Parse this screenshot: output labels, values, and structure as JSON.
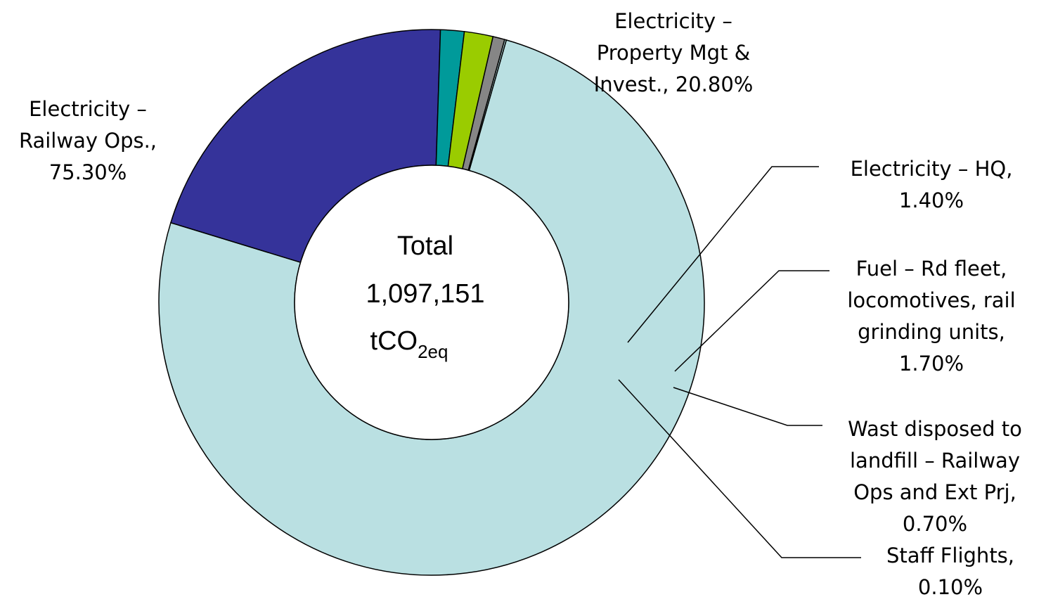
{
  "chart_data": {
    "type": "pie",
    "variant": "donut",
    "title": "",
    "center_label": {
      "line1": "Total",
      "line2": "1,097,151",
      "unit_main": "tCO",
      "unit_sub": "2eq"
    },
    "slices": [
      {
        "name": "Electricity – Railway Ops.",
        "value": 75.3,
        "label_lines": [
          "Electricity –",
          "Railway Ops.,",
          "75.30%"
        ],
        "color": "#BAE0E2"
      },
      {
        "name": "Electricity – Property Mgt & Invest.",
        "value": 20.8,
        "label_lines": [
          "Electricity –",
          "Property Mgt &",
          "Invest., 20.80%"
        ],
        "color": "#35339A"
      },
      {
        "name": "Electricity – HQ",
        "value": 1.4,
        "label_lines": [
          "Electricity – HQ,",
          "1.40%"
        ],
        "color": "#009A9A"
      },
      {
        "name": "Fuel – Rd fleet, locomotives, rail grinding units",
        "value": 1.7,
        "label_lines": [
          "Fuel – Rd fleet,",
          "locomotives, rail",
          "grinding units,",
          "1.70%"
        ],
        "color": "#9ACC00"
      },
      {
        "name": "Wast disposed to landfill – Railway Ops and Ext Prj",
        "value": 0.7,
        "label_lines": [
          "Wast disposed to",
          "landfill – Railway",
          "Ops and Ext Prj,",
          "0.70%"
        ],
        "color": "#868686"
      },
      {
        "name": "Staff Flights",
        "value": 0.1,
        "label_lines": [
          "Staff Flights,",
          "0.10%"
        ],
        "color": "#BAE0E2"
      }
    ],
    "legend": "none"
  }
}
